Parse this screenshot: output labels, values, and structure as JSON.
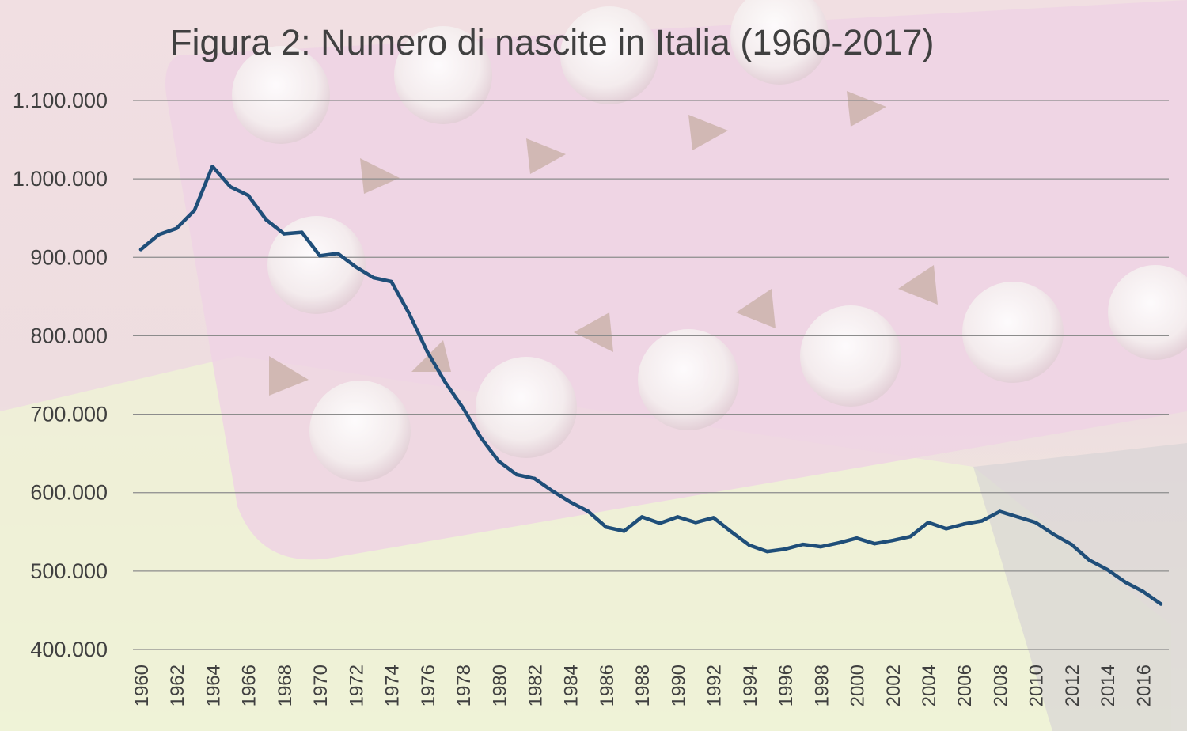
{
  "chart_data": {
    "type": "line",
    "title": "Figura 2: Numero di nascite in Italia (1960-2017)",
    "xlabel": "",
    "ylabel": "",
    "ylim": [
      400000,
      1100000
    ],
    "yticks": [
      "400.000",
      "500.000",
      "600.000",
      "700.000",
      "800.000",
      "900.000",
      "1.000.000",
      "1.100.000"
    ],
    "xticks": [
      "1960",
      "1962",
      "1964",
      "1966",
      "1968",
      "1970",
      "1972",
      "1974",
      "1976",
      "1978",
      "1980",
      "1982",
      "1984",
      "1986",
      "1988",
      "1990",
      "1992",
      "1994",
      "1996",
      "1998",
      "2000",
      "2002",
      "2004",
      "2006",
      "2008",
      "2010",
      "2012",
      "2014",
      "2016"
    ],
    "grid": true,
    "line_color": "#1f4e79",
    "series": [
      {
        "x": [
          1960,
          1961,
          1962,
          1963,
          1964,
          1965,
          1966,
          1967,
          1968,
          1969,
          1970,
          1971,
          1972,
          1973,
          1974,
          1975,
          1976,
          1977,
          1978,
          1979,
          1980,
          1981,
          1982,
          1983,
          1984,
          1985,
          1986,
          1987,
          1988,
          1989,
          1990,
          1991,
          1992,
          1993,
          1994,
          1995,
          1996,
          1997,
          1998,
          1999,
          2000,
          2001,
          2002,
          2003,
          2004,
          2005,
          2006,
          2007,
          2008,
          2009,
          2010,
          2011,
          2012,
          2013,
          2014,
          2015,
          2016,
          2017
        ],
        "values": [
          910000,
          929000,
          937000,
          960000,
          1016000,
          990000,
          979000,
          948000,
          930000,
          932000,
          902000,
          905000,
          888000,
          874000,
          869000,
          828000,
          780000,
          741000,
          708000,
          670000,
          640000,
          623000,
          618000,
          602000,
          588000,
          576000,
          556000,
          551000,
          569000,
          561000,
          569000,
          562000,
          568000,
          550000,
          533000,
          525000,
          528000,
          534000,
          531000,
          536000,
          542000,
          535000,
          539000,
          544000,
          562000,
          554000,
          560000,
          564000,
          576000,
          569000,
          562000,
          547000,
          534000,
          514000,
          502000,
          486000,
          474000,
          458000
        ]
      }
    ]
  }
}
